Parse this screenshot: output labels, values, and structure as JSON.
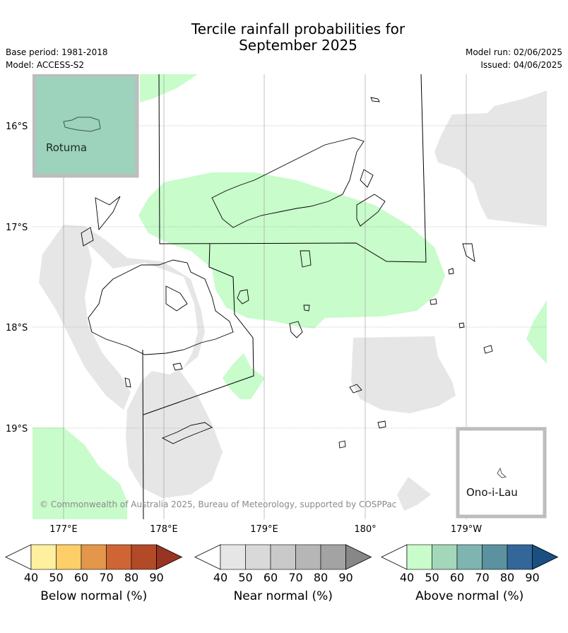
{
  "title_line1": "Tercile rainfall probabilities for",
  "title_line2": "September 2025",
  "meta_left": [
    "Base period: 1981-2018",
    "Model: ACCESS-S2"
  ],
  "meta_right": [
    "Model run: 02/06/2025",
    "Issued: 04/06/2025"
  ],
  "map": {
    "lat_labels": [
      "16°S",
      "17°S",
      "18°S",
      "19°S"
    ],
    "lon_labels": [
      "177°E",
      "178°E",
      "179°E",
      "180°",
      "179°W"
    ],
    "copyright": "© Commonwealth of Australia 2025, Bureau of Meteorology, supported by COSPPac",
    "inset_rotuma": "Rotuma",
    "inset_ono": "Ono-i-Lau"
  },
  "colorbars": [
    {
      "label": "Below normal (%)",
      "ticks": [
        "40",
        "50",
        "60",
        "70",
        "80",
        "90"
      ],
      "colors": [
        "#fff0a0",
        "#fecf68",
        "#e3974a",
        "#cf6535",
        "#b24a27",
        "#993423"
      ]
    },
    {
      "label": "Near normal (%)",
      "ticks": [
        "40",
        "50",
        "60",
        "70",
        "80",
        "90"
      ],
      "colors": [
        "#e6e6e6",
        "#d9d9d9",
        "#c9c9c9",
        "#b6b6b6",
        "#a3a3a3",
        "#878787"
      ]
    },
    {
      "label": "Above normal (%)",
      "ticks": [
        "40",
        "50",
        "60",
        "70",
        "80",
        "90"
      ],
      "colors": [
        "#c8fccb",
        "#a3d7b9",
        "#7fb5b1",
        "#5c91a0",
        "#336699",
        "#1a4f82"
      ]
    }
  ]
}
